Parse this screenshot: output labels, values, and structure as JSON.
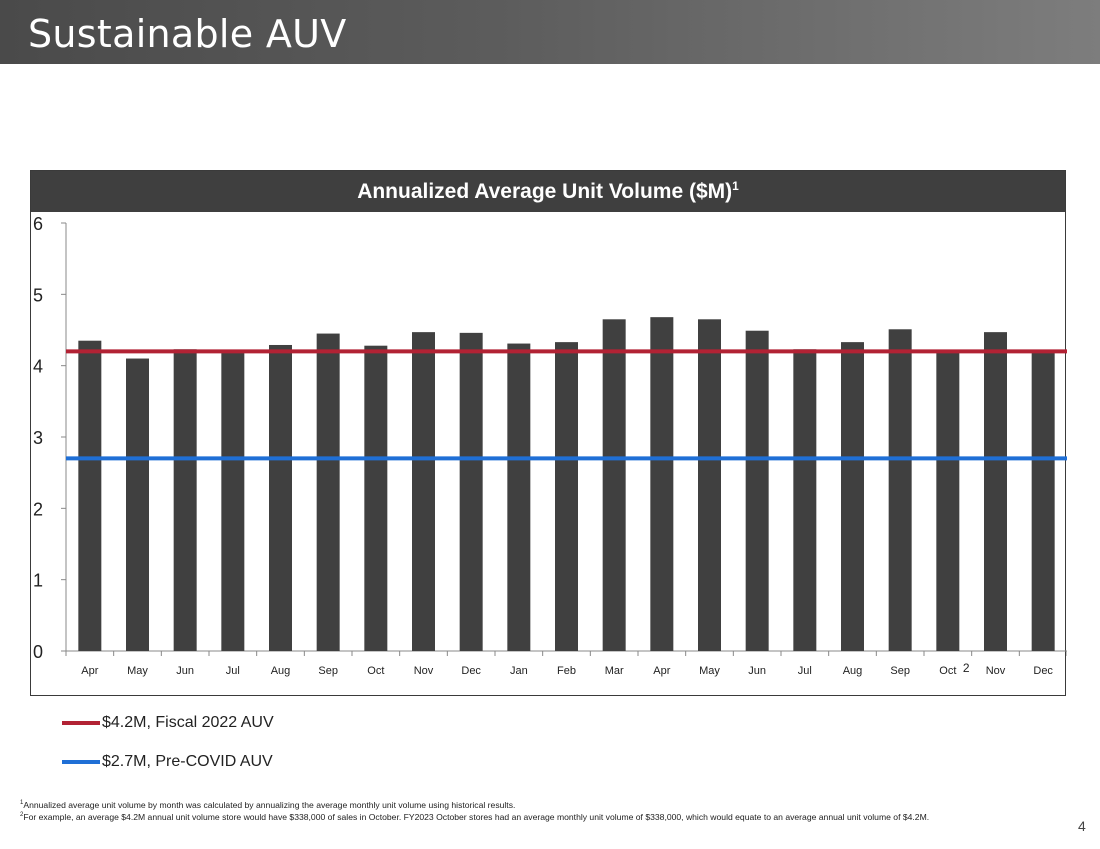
{
  "slide": {
    "title": "Sustainable AUV",
    "page_number": "4"
  },
  "chart_data": {
    "type": "bar",
    "title": "Annualized Average Unit Volume ($M)",
    "title_superscript": "1",
    "categories": [
      "Apr",
      "May",
      "Jun",
      "Jul",
      "Aug",
      "Sep",
      "Oct",
      "Nov",
      "Dec",
      "Jan",
      "Feb",
      "Mar",
      "Apr",
      "May",
      "Jun",
      "Jul",
      "Aug",
      "Sep",
      "Oct",
      "Nov",
      "Dec"
    ],
    "category_superscripts": {
      "18": "2"
    },
    "values": [
      4.35,
      4.1,
      4.23,
      4.22,
      4.29,
      4.45,
      4.28,
      4.47,
      4.46,
      4.31,
      4.33,
      4.65,
      4.68,
      4.65,
      4.49,
      4.23,
      4.33,
      4.51,
      4.21,
      4.47,
      4.2
    ],
    "ylim": [
      0,
      6
    ],
    "yticks": [
      0,
      1,
      2,
      3,
      4,
      5,
      6
    ],
    "bar_color": "#404040",
    "reference_lines": [
      {
        "value": 4.2,
        "label": "$4.2M, Fiscal 2022 AUV",
        "color": "#b22234"
      },
      {
        "value": 2.7,
        "label": "$2.7M, Pre-COVID AUV",
        "color": "#1f6fd6"
      }
    ],
    "legend_position": "bottom-left"
  },
  "footnotes": {
    "note1_marker": "1",
    "note1": "Annualized average unit volume by month was calculated by annualizing the average monthly unit volume using historical results.",
    "note2_marker": "2",
    "note2": "For example, an average $4.2M annual unit volume store would have $338,000 of sales in October. FY2023 October stores had an average monthly unit volume of $338,000, which would equate to an average annual unit volume of $4.2M."
  }
}
